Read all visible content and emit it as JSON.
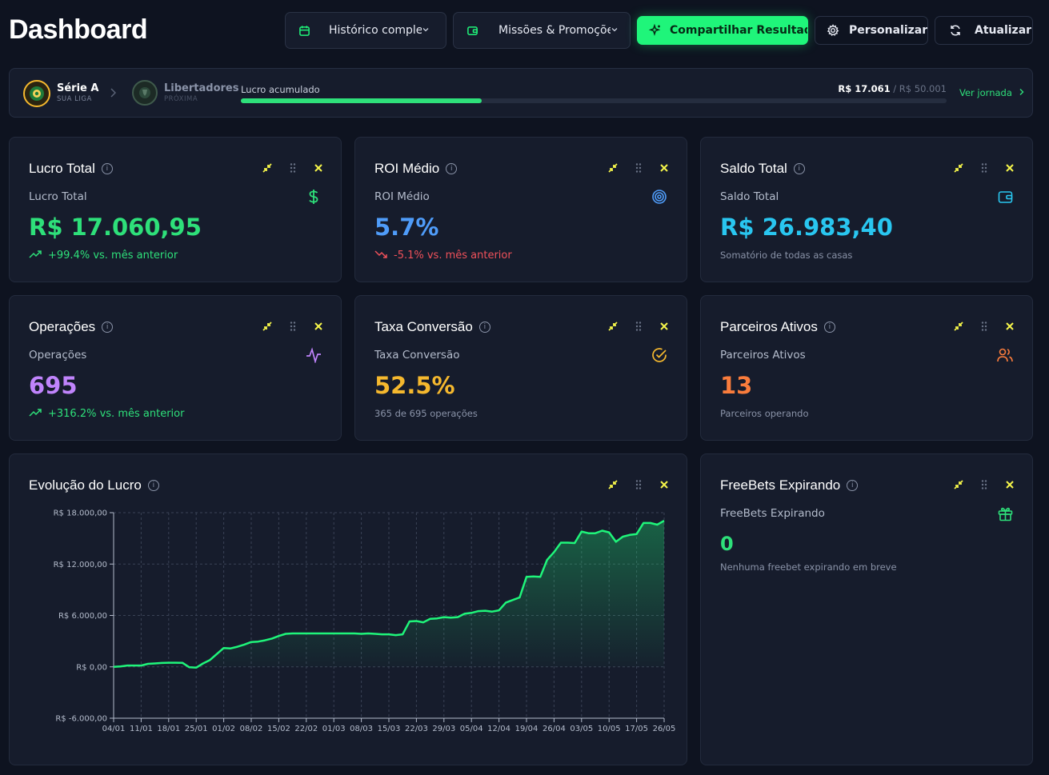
{
  "page": {
    "title": "Dashboard"
  },
  "toolbar": {
    "history": "Histórico completo",
    "missions": "Missões & Promoções",
    "share": "Compartilhar Resultado",
    "customize": "Personalizar",
    "refresh": "Atualizar"
  },
  "league": {
    "current_name": "Série A",
    "current_sub": "SUA LIGA",
    "next_name": "Libertadores",
    "next_sub": "PRÓXIMA",
    "progress_label": "Lucro acumulado",
    "progress_value": "R$ 17.061",
    "progress_sep": " / ",
    "progress_target": "R$ 50.001",
    "progress_fraction": 0.341,
    "link": "Ver jornada"
  },
  "cards": {
    "lucro": {
      "title": "Lucro Total",
      "sub": "Lucro Total",
      "value": "R$ 17.060,95",
      "delta": "+99.4% vs. mês anterior",
      "color": "#2ee07a"
    },
    "roi": {
      "title": "ROI Médio",
      "sub": "ROI Médio",
      "value": "5.7%",
      "delta": "-5.1% vs. mês anterior",
      "color": "#4f9cf9"
    },
    "saldo": {
      "title": "Saldo Total",
      "sub": "Saldo Total",
      "value": "R$ 26.983,40",
      "note": "Somatório de todas as casas",
      "color": "#29c6f0"
    },
    "operacoes": {
      "title": "Operações",
      "sub": "Operações",
      "value": "695",
      "delta": "+316.2% vs. mês anterior",
      "color": "#c084fc"
    },
    "taxa": {
      "title": "Taxa Conversão",
      "sub": "Taxa Conversão",
      "value": "52.5%",
      "note": "365 de 695 operações",
      "color": "#f5b82e"
    },
    "parceiros": {
      "title": "Parceiros Ativos",
      "sub": "Parceiros Ativos",
      "value": "13",
      "note": "Parceiros operando",
      "color": "#f97c3c"
    },
    "freebets": {
      "title": "FreeBets Expirando",
      "sub": "FreeBets Expirando",
      "value": "0",
      "note": "Nenhuma freebet expirando em breve",
      "color": "#2ee07a"
    }
  },
  "chart_card": {
    "title": "Evolução do Lucro"
  },
  "chart_data": {
    "type": "area",
    "title": "Evolução do Lucro",
    "xlabel": "",
    "ylabel": "",
    "ylim": [
      -6000,
      18000
    ],
    "yticks": [
      "R$ -6.000,00",
      "R$ 0,00",
      "R$ 6.000,00",
      "R$ 12.000,00",
      "R$ 18.000,00"
    ],
    "ytick_values": [
      -6000,
      0,
      6000,
      12000,
      18000
    ],
    "xticks": [
      "04/01",
      "11/01",
      "18/01",
      "25/01",
      "01/02",
      "08/02",
      "15/02",
      "22/02",
      "01/03",
      "08/03",
      "15/03",
      "22/03",
      "29/03",
      "05/04",
      "12/04",
      "19/04",
      "26/04",
      "03/05",
      "10/05",
      "17/05",
      "26/05"
    ],
    "grid": true,
    "series": [
      {
        "values": [
          0,
          50,
          150,
          150,
          150,
          350,
          400,
          450,
          480,
          480,
          470,
          -50,
          -100,
          400,
          800,
          1500,
          2200,
          2150,
          2350,
          2600,
          2900,
          2950,
          3100,
          3300,
          3600,
          3850,
          3900,
          3900,
          3900,
          3900,
          3900,
          3900,
          3900,
          3900,
          3900,
          3900,
          3850,
          3900,
          3850,
          3800,
          3800,
          3700,
          3800,
          5300,
          5350,
          5200,
          5600,
          5650,
          5800,
          5750,
          5800,
          6200,
          6300,
          6500,
          6550,
          6450,
          6600,
          7500,
          7800,
          8100,
          10500,
          10550,
          10500,
          12500,
          13400,
          14500,
          14500,
          14450,
          15800,
          15600,
          15600,
          15900,
          15700,
          14600,
          15200,
          15400,
          15500,
          16800,
          16800,
          16600,
          17060
        ]
      }
    ],
    "color": "#1ff57a"
  }
}
